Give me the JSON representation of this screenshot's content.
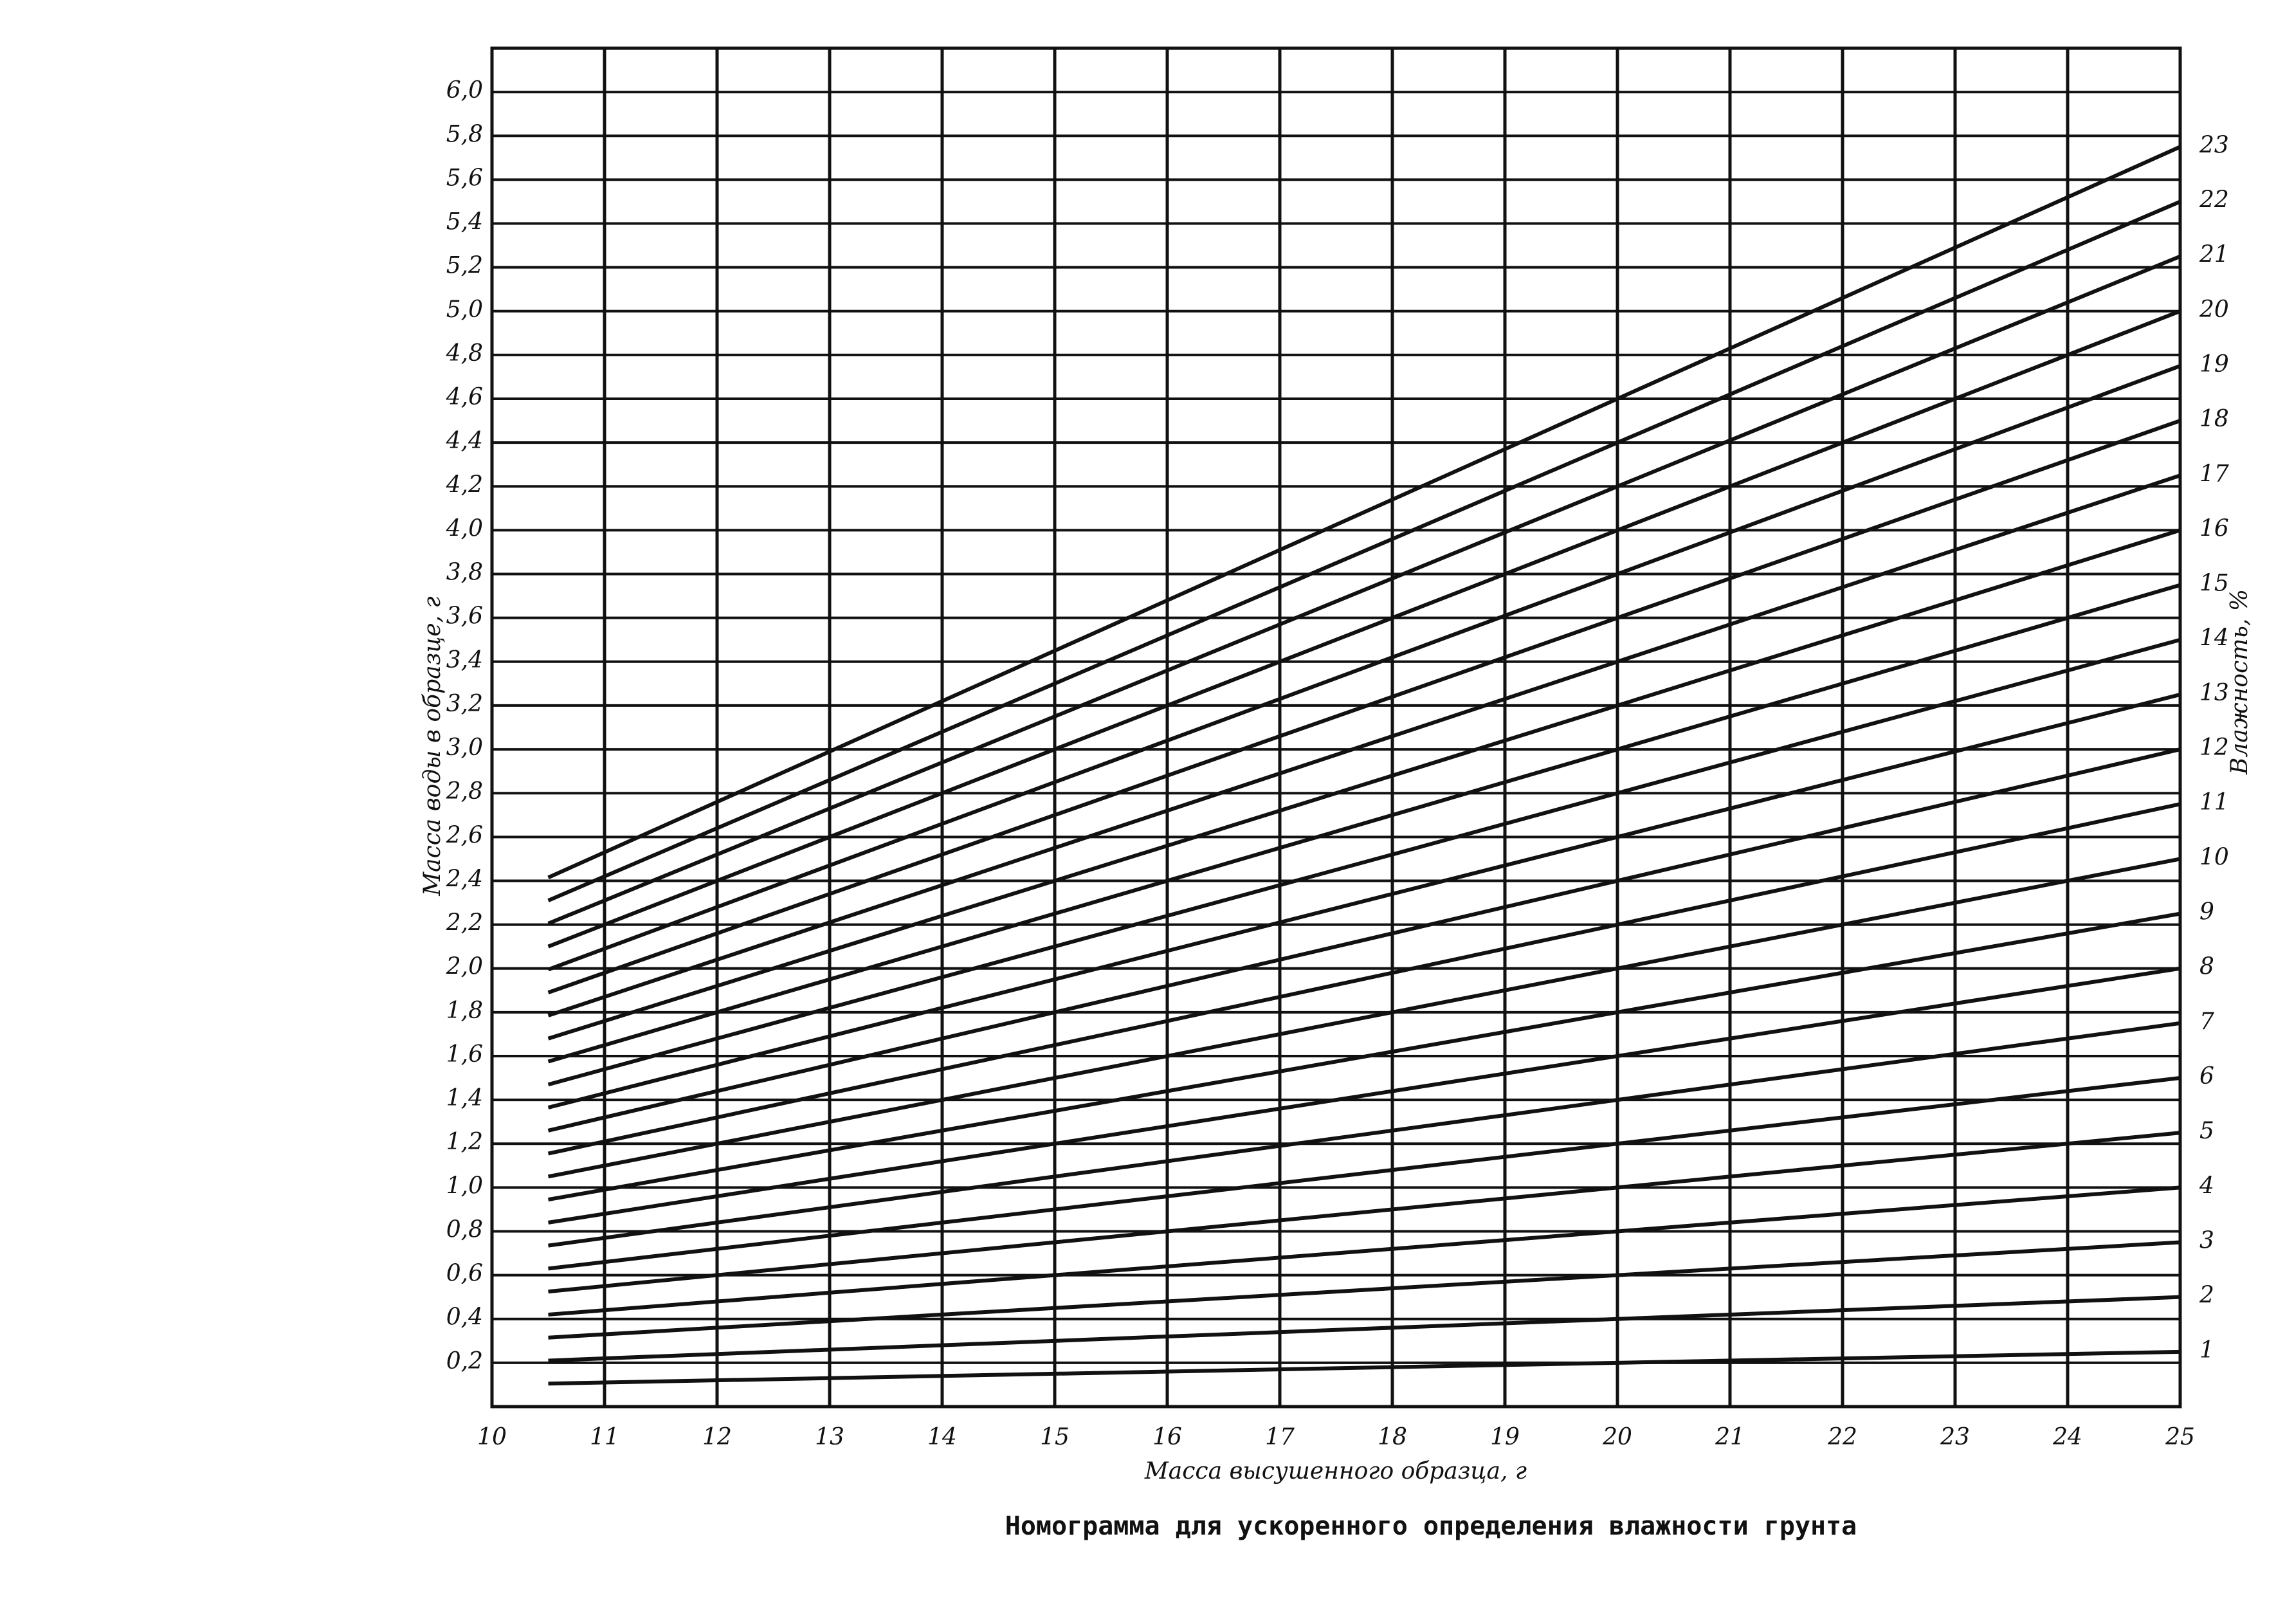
{
  "chart_data": {
    "type": "line",
    "title": "Номограмма для ускоренного определения влажности грунта",
    "x_label": "Масса высушенного образца, г",
    "y_label": "Масса воды в образце, г",
    "y2_label": "Влажность, %",
    "x": [
      10.5,
      25
    ],
    "xlim": [
      10,
      25
    ],
    "xticks": [
      10,
      11,
      12,
      13,
      14,
      15,
      16,
      17,
      18,
      19,
      20,
      21,
      22,
      23,
      24,
      25
    ],
    "ylim": [
      0,
      6.2
    ],
    "yticks": [
      {
        "value": 0.2,
        "label": "0,2"
      },
      {
        "value": 0.4,
        "label": "0,4"
      },
      {
        "value": 0.6,
        "label": "0,6"
      },
      {
        "value": 0.8,
        "label": "0,8"
      },
      {
        "value": 1.0,
        "label": "1,0"
      },
      {
        "value": 1.2,
        "label": "1,2"
      },
      {
        "value": 1.4,
        "label": "1,4"
      },
      {
        "value": 1.6,
        "label": "1,6"
      },
      {
        "value": 1.8,
        "label": "1,8"
      },
      {
        "value": 2.0,
        "label": "2,0"
      },
      {
        "value": 2.2,
        "label": "2,2"
      },
      {
        "value": 2.4,
        "label": "2,4"
      },
      {
        "value": 2.6,
        "label": "2,6"
      },
      {
        "value": 2.8,
        "label": "2,8"
      },
      {
        "value": 3.0,
        "label": "3,0"
      },
      {
        "value": 3.2,
        "label": "3,2"
      },
      {
        "value": 3.4,
        "label": "3,4"
      },
      {
        "value": 3.6,
        "label": "3,6"
      },
      {
        "value": 3.8,
        "label": "3,8"
      },
      {
        "value": 4.0,
        "label": "4,0"
      },
      {
        "value": 4.2,
        "label": "4,2"
      },
      {
        "value": 4.4,
        "label": "4,4"
      },
      {
        "value": 4.6,
        "label": "4,6"
      },
      {
        "value": 4.8,
        "label": "4,8"
      },
      {
        "value": 5.0,
        "label": "5,0"
      },
      {
        "value": 5.2,
        "label": "5,2"
      },
      {
        "value": 5.4,
        "label": "5,4"
      },
      {
        "value": 5.6,
        "label": "5,6"
      },
      {
        "value": 5.8,
        "label": "5,8"
      },
      {
        "value": 6.0,
        "label": "6,0"
      }
    ],
    "grid": true,
    "series": [
      {
        "name": "1",
        "color": "#111",
        "values": [
          0.105,
          0.25
        ]
      },
      {
        "name": "2",
        "color": "#111",
        "values": [
          0.21,
          0.5
        ]
      },
      {
        "name": "3",
        "color": "#111",
        "values": [
          0.315,
          0.75
        ]
      },
      {
        "name": "4",
        "color": "#111",
        "values": [
          0.42,
          1.0
        ]
      },
      {
        "name": "5",
        "color": "#111",
        "values": [
          0.525,
          1.25
        ]
      },
      {
        "name": "6",
        "color": "#111",
        "values": [
          0.63,
          1.5
        ]
      },
      {
        "name": "7",
        "color": "#111",
        "values": [
          0.735,
          1.75
        ]
      },
      {
        "name": "8",
        "color": "#111",
        "values": [
          0.84,
          2.0
        ]
      },
      {
        "name": "9",
        "color": "#111",
        "values": [
          0.945,
          2.25
        ]
      },
      {
        "name": "10",
        "color": "#111",
        "values": [
          1.05,
          2.5
        ]
      },
      {
        "name": "11",
        "color": "#111",
        "values": [
          1.155,
          2.75
        ]
      },
      {
        "name": "12",
        "color": "#111",
        "values": [
          1.26,
          3.0
        ]
      },
      {
        "name": "13",
        "color": "#111",
        "values": [
          1.365,
          3.25
        ]
      },
      {
        "name": "14",
        "color": "#111",
        "values": [
          1.47,
          3.5
        ]
      },
      {
        "name": "15",
        "color": "#111",
        "values": [
          1.575,
          3.75
        ]
      },
      {
        "name": "16",
        "color": "#111",
        "values": [
          1.68,
          4.0
        ]
      },
      {
        "name": "17",
        "color": "#111",
        "values": [
          1.785,
          4.25
        ]
      },
      {
        "name": "18",
        "color": "#111",
        "values": [
          1.89,
          4.5
        ]
      },
      {
        "name": "19",
        "color": "#111",
        "values": [
          1.995,
          4.75
        ]
      },
      {
        "name": "20",
        "color": "#111",
        "values": [
          2.1,
          5.0
        ]
      },
      {
        "name": "21",
        "color": "#111",
        "values": [
          2.205,
          5.25
        ]
      },
      {
        "name": "22",
        "color": "#111",
        "values": [
          2.31,
          5.5
        ]
      },
      {
        "name": "23",
        "color": "#111",
        "values": [
          2.415,
          5.75
        ]
      }
    ]
  }
}
